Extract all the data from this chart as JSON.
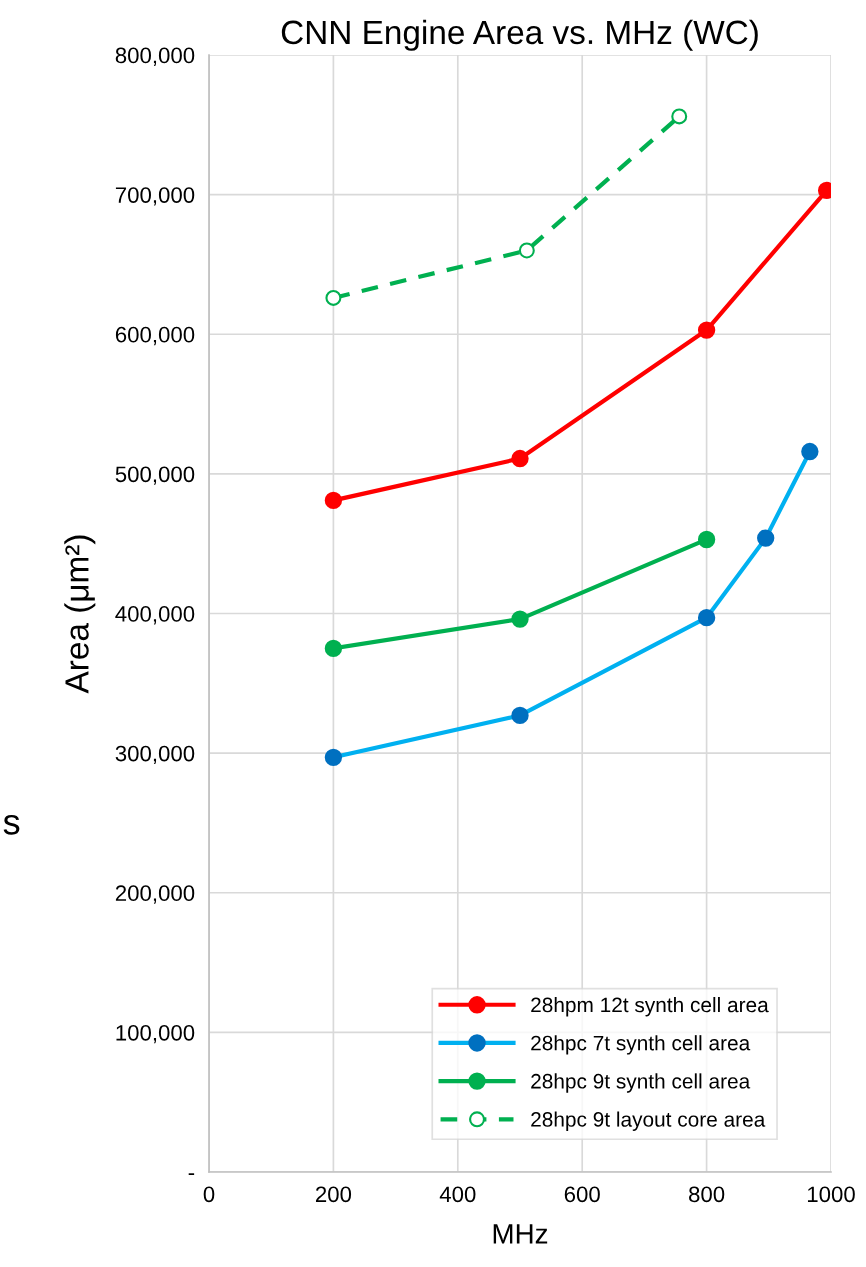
{
  "chart_data": {
    "type": "line",
    "title": "CNN Engine Area vs. MHz (WC)",
    "xlabel": "MHz",
    "ylabel": "Area (μm²)",
    "annotations": [
      "s"
    ],
    "xlim": [
      0,
      1000
    ],
    "xticks": [
      0,
      200,
      400,
      600,
      800,
      1000
    ],
    "ylim": [
      0,
      800000
    ],
    "yticks": [
      {
        "value": 0,
        "label": "-"
      },
      {
        "value": 100000,
        "label": "100,000"
      },
      {
        "value": 200000,
        "label": "200,000"
      },
      {
        "value": 300000,
        "label": "300,000"
      },
      {
        "value": 400000,
        "label": "400,000"
      },
      {
        "value": 500000,
        "label": "500,000"
      },
      {
        "value": 600000,
        "label": "600,000"
      },
      {
        "value": 700000,
        "label": "700,000"
      },
      {
        "value": 800000,
        "label": "800,000"
      }
    ],
    "grid": true,
    "legend": "bottom right",
    "marker": "circle",
    "series": [
      {
        "name": "28hpm 12t synth cell area",
        "color": "#ff0000",
        "x": [
          200,
          500,
          800,
          993
        ],
        "values": [
          481000,
          511000,
          603000,
          703000
        ]
      },
      {
        "name": "28hpc 7t synth cell area",
        "color": "#00b0f0",
        "x": [
          200,
          500,
          800,
          895,
          966
        ],
        "values": [
          297000,
          327000,
          397000,
          454000,
          516000
        ]
      },
      {
        "name": "28hpc 9t synth cell area",
        "color": "#00b050",
        "x": [
          200,
          500,
          800
        ],
        "values": [
          375000,
          396000,
          453000
        ]
      },
      {
        "name": "28hpc 9t layout core area",
        "color": "#00b050",
        "line_style": "dashed",
        "marker": "open circle",
        "x": [
          200,
          511,
          756
        ],
        "values": [
          626000,
          660000,
          756000
        ]
      }
    ]
  }
}
